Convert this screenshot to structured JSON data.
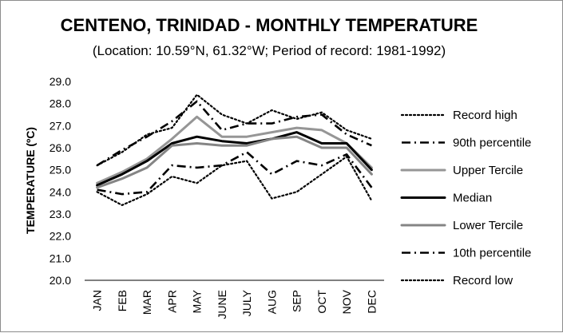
{
  "chart_data": {
    "type": "line",
    "title": "CENTENO, TRINIDAD - MONTHLY TEMPERATURE",
    "subtitle": "(Location: 10.59°N, 61.32°W; Period of record: 1981-1992)",
    "ylabel": "TEMPERATURE (ºC)",
    "xlabel": "",
    "ylim": [
      20.0,
      29.0
    ],
    "yticks": [
      "20.0",
      "21.0",
      "22.0",
      "23.0",
      "24.0",
      "25.0",
      "26.0",
      "27.0",
      "28.0",
      "29.0"
    ],
    "categories": [
      "JAN",
      "FEB",
      "MAR",
      "APR",
      "MAY",
      "JUNE",
      "JULY",
      "AUG",
      "SEP",
      "OCT",
      "NOV",
      "DEC"
    ],
    "grid": false,
    "legend_position": "right",
    "series": [
      {
        "name": "Record high",
        "color": "#000000",
        "style": "dotted",
        "values": [
          25.2,
          25.8,
          26.6,
          26.9,
          28.4,
          27.5,
          27.1,
          27.7,
          27.3,
          27.6,
          26.8,
          26.4
        ]
      },
      {
        "name": "90th percentile",
        "color": "#000000",
        "style": "longdashdot",
        "values": [
          25.2,
          25.9,
          26.5,
          27.2,
          28.1,
          26.8,
          27.1,
          27.1,
          27.4,
          27.5,
          26.6,
          26.1
        ]
      },
      {
        "name": "Upper Tercile",
        "color": "#969696",
        "style": "solid",
        "values": [
          24.4,
          24.9,
          25.5,
          26.4,
          27.4,
          26.5,
          26.5,
          26.7,
          26.9,
          26.8,
          26.2,
          25.1
        ]
      },
      {
        "name": "Median",
        "color": "#000000",
        "style": "solid-thick",
        "values": [
          24.3,
          24.8,
          25.4,
          26.2,
          26.5,
          26.3,
          26.2,
          26.4,
          26.7,
          26.2,
          26.2,
          25.0
        ]
      },
      {
        "name": "Lower Tercile",
        "color": "#858585",
        "style": "solid",
        "values": [
          24.2,
          24.6,
          25.1,
          26.1,
          26.2,
          26.1,
          26.1,
          26.4,
          26.5,
          26.0,
          26.0,
          24.8
        ]
      },
      {
        "name": "10th percentile",
        "color": "#000000",
        "style": "longdashdot",
        "values": [
          24.1,
          23.9,
          24.0,
          25.2,
          25.1,
          25.2,
          25.8,
          24.8,
          25.4,
          25.2,
          25.7,
          24.2
        ]
      },
      {
        "name": "Record low",
        "color": "#000000",
        "style": "dotted",
        "values": [
          24.0,
          23.4,
          23.9,
          24.7,
          24.4,
          25.2,
          25.4,
          23.7,
          24.0,
          24.8,
          25.6,
          23.6
        ]
      }
    ]
  }
}
